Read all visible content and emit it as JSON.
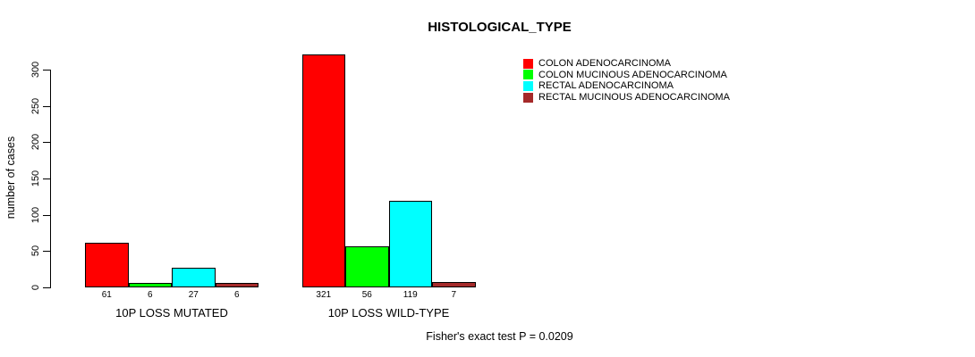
{
  "chart_data": {
    "type": "bar",
    "title": "HISTOLOGICAL_TYPE",
    "xlabel": "",
    "ylabel": "number of cases",
    "categories": [
      "10P LOSS MUTATED",
      "10P LOSS WILD-TYPE"
    ],
    "series": [
      {
        "name": "COLON ADENOCARCINOMA",
        "color": "#FF0000",
        "values": [
          61,
          321
        ]
      },
      {
        "name": "COLON MUCINOUS ADENOCARCINOMA",
        "color": "#00FF00",
        "values": [
          6,
          56
        ]
      },
      {
        "name": "RECTAL ADENOCARCINOMA",
        "color": "#00FFFF",
        "values": [
          27,
          119
        ]
      },
      {
        "name": "RECTAL MUCINOUS ADENOCARCINOMA",
        "color": "#A52A2A",
        "values": [
          6,
          7
        ]
      }
    ],
    "yticks": [
      0,
      50,
      100,
      150,
      200,
      250,
      300
    ],
    "ylim": [
      0,
      300
    ],
    "grid": false,
    "legend_position": "top-right",
    "show_bar_value_labels": true,
    "annotation": "Fisher's exact test P = 0.0209"
  }
}
